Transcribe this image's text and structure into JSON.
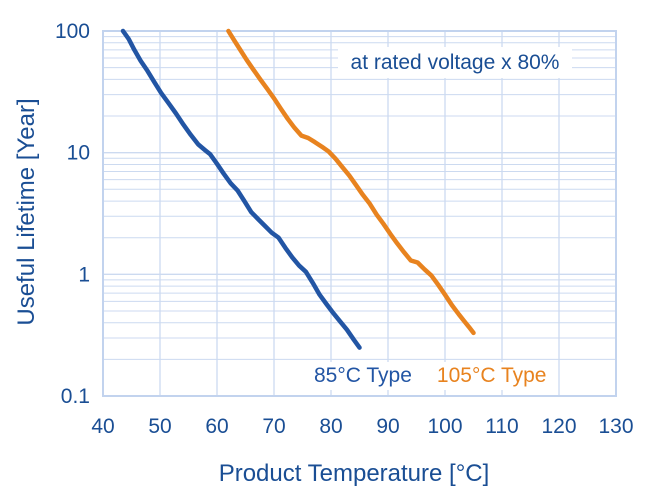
{
  "figure": {
    "background": "#ffffff",
    "text_color": "#1a4e94",
    "grid_color": "#ccdaf0",
    "frame_color": "#c2d3ee"
  },
  "chart_data": {
    "type": "line",
    "title": "",
    "xlabel": "Product Temperature [°C]",
    "ylabel": "Useful Lifetime [Year]",
    "annotation": "at rated voltage x 80%",
    "grid": true,
    "legend_position": "inside-bottom",
    "x_axis": {
      "scale": "linear",
      "min": 40,
      "max": 130,
      "ticks": [
        40,
        50,
        60,
        70,
        80,
        90,
        100,
        110,
        120,
        130
      ]
    },
    "y_axis": {
      "scale": "log",
      "min": 0.1,
      "max": 100,
      "ticks": [
        100,
        10,
        1,
        0.1
      ],
      "tick_labels": [
        "100",
        "10",
        "1",
        "0.1"
      ],
      "minor_gridlines": true
    },
    "series": [
      {
        "name": "85°C Type",
        "color": "#2255a4",
        "points": [
          [
            43.5,
            100
          ],
          [
            44.5,
            86
          ],
          [
            45.5,
            70
          ],
          [
            46.6,
            57
          ],
          [
            47.8,
            47
          ],
          [
            49,
            38
          ],
          [
            50.2,
            31
          ],
          [
            51.5,
            25.5
          ],
          [
            52.8,
            21
          ],
          [
            54.1,
            17
          ],
          [
            55.4,
            14
          ],
          [
            56.7,
            11.7
          ],
          [
            58,
            10.4
          ],
          [
            58.8,
            9.7
          ],
          [
            60,
            8.1
          ],
          [
            61.2,
            6.7
          ],
          [
            62.4,
            5.6
          ],
          [
            63.6,
            4.9
          ],
          [
            64.8,
            4.0
          ],
          [
            66,
            3.25
          ],
          [
            67.2,
            2.85
          ],
          [
            68.4,
            2.5
          ],
          [
            69.6,
            2.2
          ],
          [
            70.8,
            2.0
          ],
          [
            72,
            1.65
          ],
          [
            73.2,
            1.38
          ],
          [
            74.4,
            1.18
          ],
          [
            75.6,
            1.05
          ],
          [
            76.8,
            0.85
          ],
          [
            78,
            0.68
          ],
          [
            79.2,
            0.57
          ],
          [
            80.4,
            0.48
          ],
          [
            81.6,
            0.41
          ],
          [
            82.8,
            0.35
          ],
          [
            84,
            0.29
          ],
          [
            85,
            0.25
          ]
        ]
      },
      {
        "name": "105°C Type",
        "color": "#e8831f",
        "points": [
          [
            62,
            100
          ],
          [
            63,
            84
          ],
          [
            64,
            71
          ],
          [
            65.2,
            58
          ],
          [
            66.4,
            48
          ],
          [
            67.6,
            40
          ],
          [
            68.8,
            33.5
          ],
          [
            70,
            28
          ],
          [
            71.2,
            23
          ],
          [
            72.4,
            19
          ],
          [
            73.6,
            16
          ],
          [
            74.8,
            13.8
          ],
          [
            76,
            13.2
          ],
          [
            77.2,
            12.2
          ],
          [
            78.4,
            11.2
          ],
          [
            79.6,
            10.2
          ],
          [
            80.8,
            8.9
          ],
          [
            82,
            7.6
          ],
          [
            83.2,
            6.5
          ],
          [
            84.4,
            5.4
          ],
          [
            85.6,
            4.5
          ],
          [
            86.8,
            3.8
          ],
          [
            88,
            3.1
          ],
          [
            89.2,
            2.6
          ],
          [
            90.4,
            2.15
          ],
          [
            91.6,
            1.8
          ],
          [
            92.8,
            1.52
          ],
          [
            94,
            1.3
          ],
          [
            95.2,
            1.25
          ],
          [
            96.4,
            1.1
          ],
          [
            97.6,
            0.98
          ],
          [
            98.8,
            0.82
          ],
          [
            100,
            0.68
          ],
          [
            101.2,
            0.56
          ],
          [
            102.4,
            0.47
          ],
          [
            103.4,
            0.41
          ],
          [
            104.2,
            0.37
          ],
          [
            105,
            0.33
          ]
        ]
      }
    ]
  }
}
